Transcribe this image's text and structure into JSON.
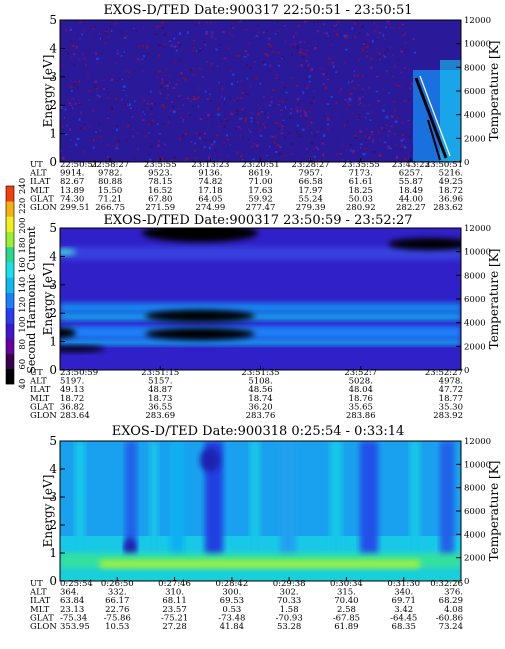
{
  "colorbar": {
    "label": "Second Harmonic Current",
    "ticks": [
      "40",
      "60",
      "80",
      "100",
      "120",
      "140",
      "160",
      "180",
      "200",
      "220",
      "240"
    ],
    "colors": [
      "#000000",
      "#3a0050",
      "#6a00a0",
      "#3c18d0",
      "#2a3cf0",
      "#1a80f8",
      "#10b8f0",
      "#18e0e8",
      "#28d890",
      "#9af030",
      "#f0f020",
      "#f8b010",
      "#f04010"
    ]
  },
  "chart_data": [
    {
      "type": "heatmap",
      "title": "EXOS-D/TED   Date:900317   22:50:51 - 23:50:51",
      "ylabel": "Energy [eV]",
      "y2label": "Temperature [K]",
      "ylim": [
        0,
        5
      ],
      "y2lim": [
        0,
        12000
      ],
      "yticks": [
        "0",
        "1",
        "2",
        "3",
        "4",
        "5"
      ],
      "y2ticks": [
        "0",
        "2000",
        "4000",
        "6000",
        "8000",
        "10000",
        "12000"
      ],
      "x_labels": [
        "22:50:51",
        "22:58:27",
        "23:5:55",
        "23:13:23",
        "23:20:51",
        "23:28:27",
        "23:35:55",
        "23:43:23",
        "23:50:51"
      ],
      "rows": [
        {
          "label": "UT",
          "values": [
            "22:50:51",
            "22:58:27",
            "23:5:55",
            "23:13:23",
            "23:20:51",
            "23:28:27",
            "23:35:55",
            "23:43:23",
            "23:50:51"
          ]
        },
        {
          "label": "ALT",
          "values": [
            "9914.",
            "9782.",
            "9523.",
            "9136.",
            "8619.",
            "7957.",
            "7173.",
            "6257.",
            "5216."
          ]
        },
        {
          "label": "ILAT",
          "values": [
            "82.67",
            "80.88",
            "78.15",
            "74.82",
            "71.00",
            "66.58",
            "61.61",
            "55.87",
            "49.25"
          ]
        },
        {
          "label": "MLT",
          "values": [
            "13.89",
            "15.50",
            "16.52",
            "17.18",
            "17.63",
            "17.97",
            "18.25",
            "18.49",
            "18.72"
          ]
        },
        {
          "label": "GLAT",
          "values": [
            "74.30",
            "71.21",
            "67.80",
            "64.05",
            "59.92",
            "55.24",
            "50.03",
            "44.00",
            "36.96"
          ]
        },
        {
          "label": "GLON",
          "values": [
            "299.51",
            "266.75",
            "271.59",
            "274.99",
            "277.47",
            "279.39",
            "280.92",
            "282.27",
            "283.62"
          ]
        }
      ],
      "background": "#2a1a9a"
    },
    {
      "type": "heatmap",
      "title": "EXOS-D/TED   Date:900317   23:50:59 - 23:52:27",
      "ylabel": "Energy [eV]",
      "y2label": "Temperature [K]",
      "ylim": [
        0,
        5
      ],
      "y2lim": [
        0,
        12000
      ],
      "yticks": [
        "0",
        "1",
        "2",
        "3",
        "4",
        "5"
      ],
      "y2ticks": [
        "0",
        "2000",
        "4000",
        "6000",
        "8000",
        "10000",
        "12000"
      ],
      "x_labels": [
        "23:50:59",
        "23:51:15",
        "23:51:35",
        "23:52:7",
        "23:52:27"
      ],
      "rows": [
        {
          "label": "UT",
          "values": [
            "23:50:59",
            "23:51:15",
            "23:51:35",
            "23:52:7",
            "23:52:27"
          ]
        },
        {
          "label": "ALT",
          "values": [
            "5197.",
            "5157.",
            "5108.",
            "5028.",
            "4978."
          ]
        },
        {
          "label": "ILAT",
          "values": [
            "49.13",
            "48.87",
            "48.56",
            "48.04",
            "47.72"
          ]
        },
        {
          "label": "MLT",
          "values": [
            "18.72",
            "18.73",
            "18.74",
            "18.76",
            "18.77"
          ]
        },
        {
          "label": "GLAT",
          "values": [
            "36.82",
            "36.55",
            "36.20",
            "35.65",
            "35.30"
          ]
        },
        {
          "label": "GLON",
          "values": [
            "283.64",
            "283.69",
            "283.76",
            "283.86",
            "283.92"
          ]
        }
      ],
      "background": "#3020c8"
    },
    {
      "type": "heatmap",
      "title": "EXOS-D/TED   Date:900318   0:25:54 - 0:33:14",
      "ylabel": "Energy [eV]",
      "y2label": "Temperature [K]",
      "ylim": [
        0,
        5
      ],
      "y2lim": [
        0,
        12000
      ],
      "yticks": [
        "0",
        "1",
        "2",
        "3",
        "4",
        "5"
      ],
      "y2ticks": [
        "0",
        "2000",
        "4000",
        "6000",
        "8000",
        "10000",
        "12000"
      ],
      "x_labels": [
        "0:25:54",
        "0:26:50",
        "0:27:46",
        "0:28:42",
        "0:29:38",
        "0:30:34",
        "0:31:30",
        "0:32:26"
      ],
      "rows": [
        {
          "label": "UT",
          "values": [
            "0:25:54",
            "0:26:50",
            "0:27:46",
            "0:28:42",
            "0:29:38",
            "0:30:34",
            "0:31:30",
            "0:32:26"
          ]
        },
        {
          "label": "ALT",
          "values": [
            "364.",
            "332.",
            "310.",
            "300.",
            "302.",
            "315.",
            "340.",
            "376."
          ]
        },
        {
          "label": "ILAT",
          "values": [
            "63.84",
            "66.17",
            "68.11",
            "69.53",
            "70.33",
            "70.40",
            "69.71",
            "68.29"
          ]
        },
        {
          "label": "MLT",
          "values": [
            "23.13",
            "22.76",
            "23.57",
            "0.53",
            "1.58",
            "2.58",
            "3.42",
            "4.08"
          ]
        },
        {
          "label": "GLAT",
          "values": [
            "-75.34",
            "-75.86",
            "-75.21",
            "-73.48",
            "-70.93",
            "-67.85",
            "-64.45",
            "-60.86"
          ]
        },
        {
          "label": "GLON",
          "values": [
            "353.95",
            "10.53",
            "27.28",
            "41.84",
            "53.28",
            "61.89",
            "68.35",
            "73.24"
          ]
        }
      ],
      "background": "#18c8e8"
    }
  ]
}
